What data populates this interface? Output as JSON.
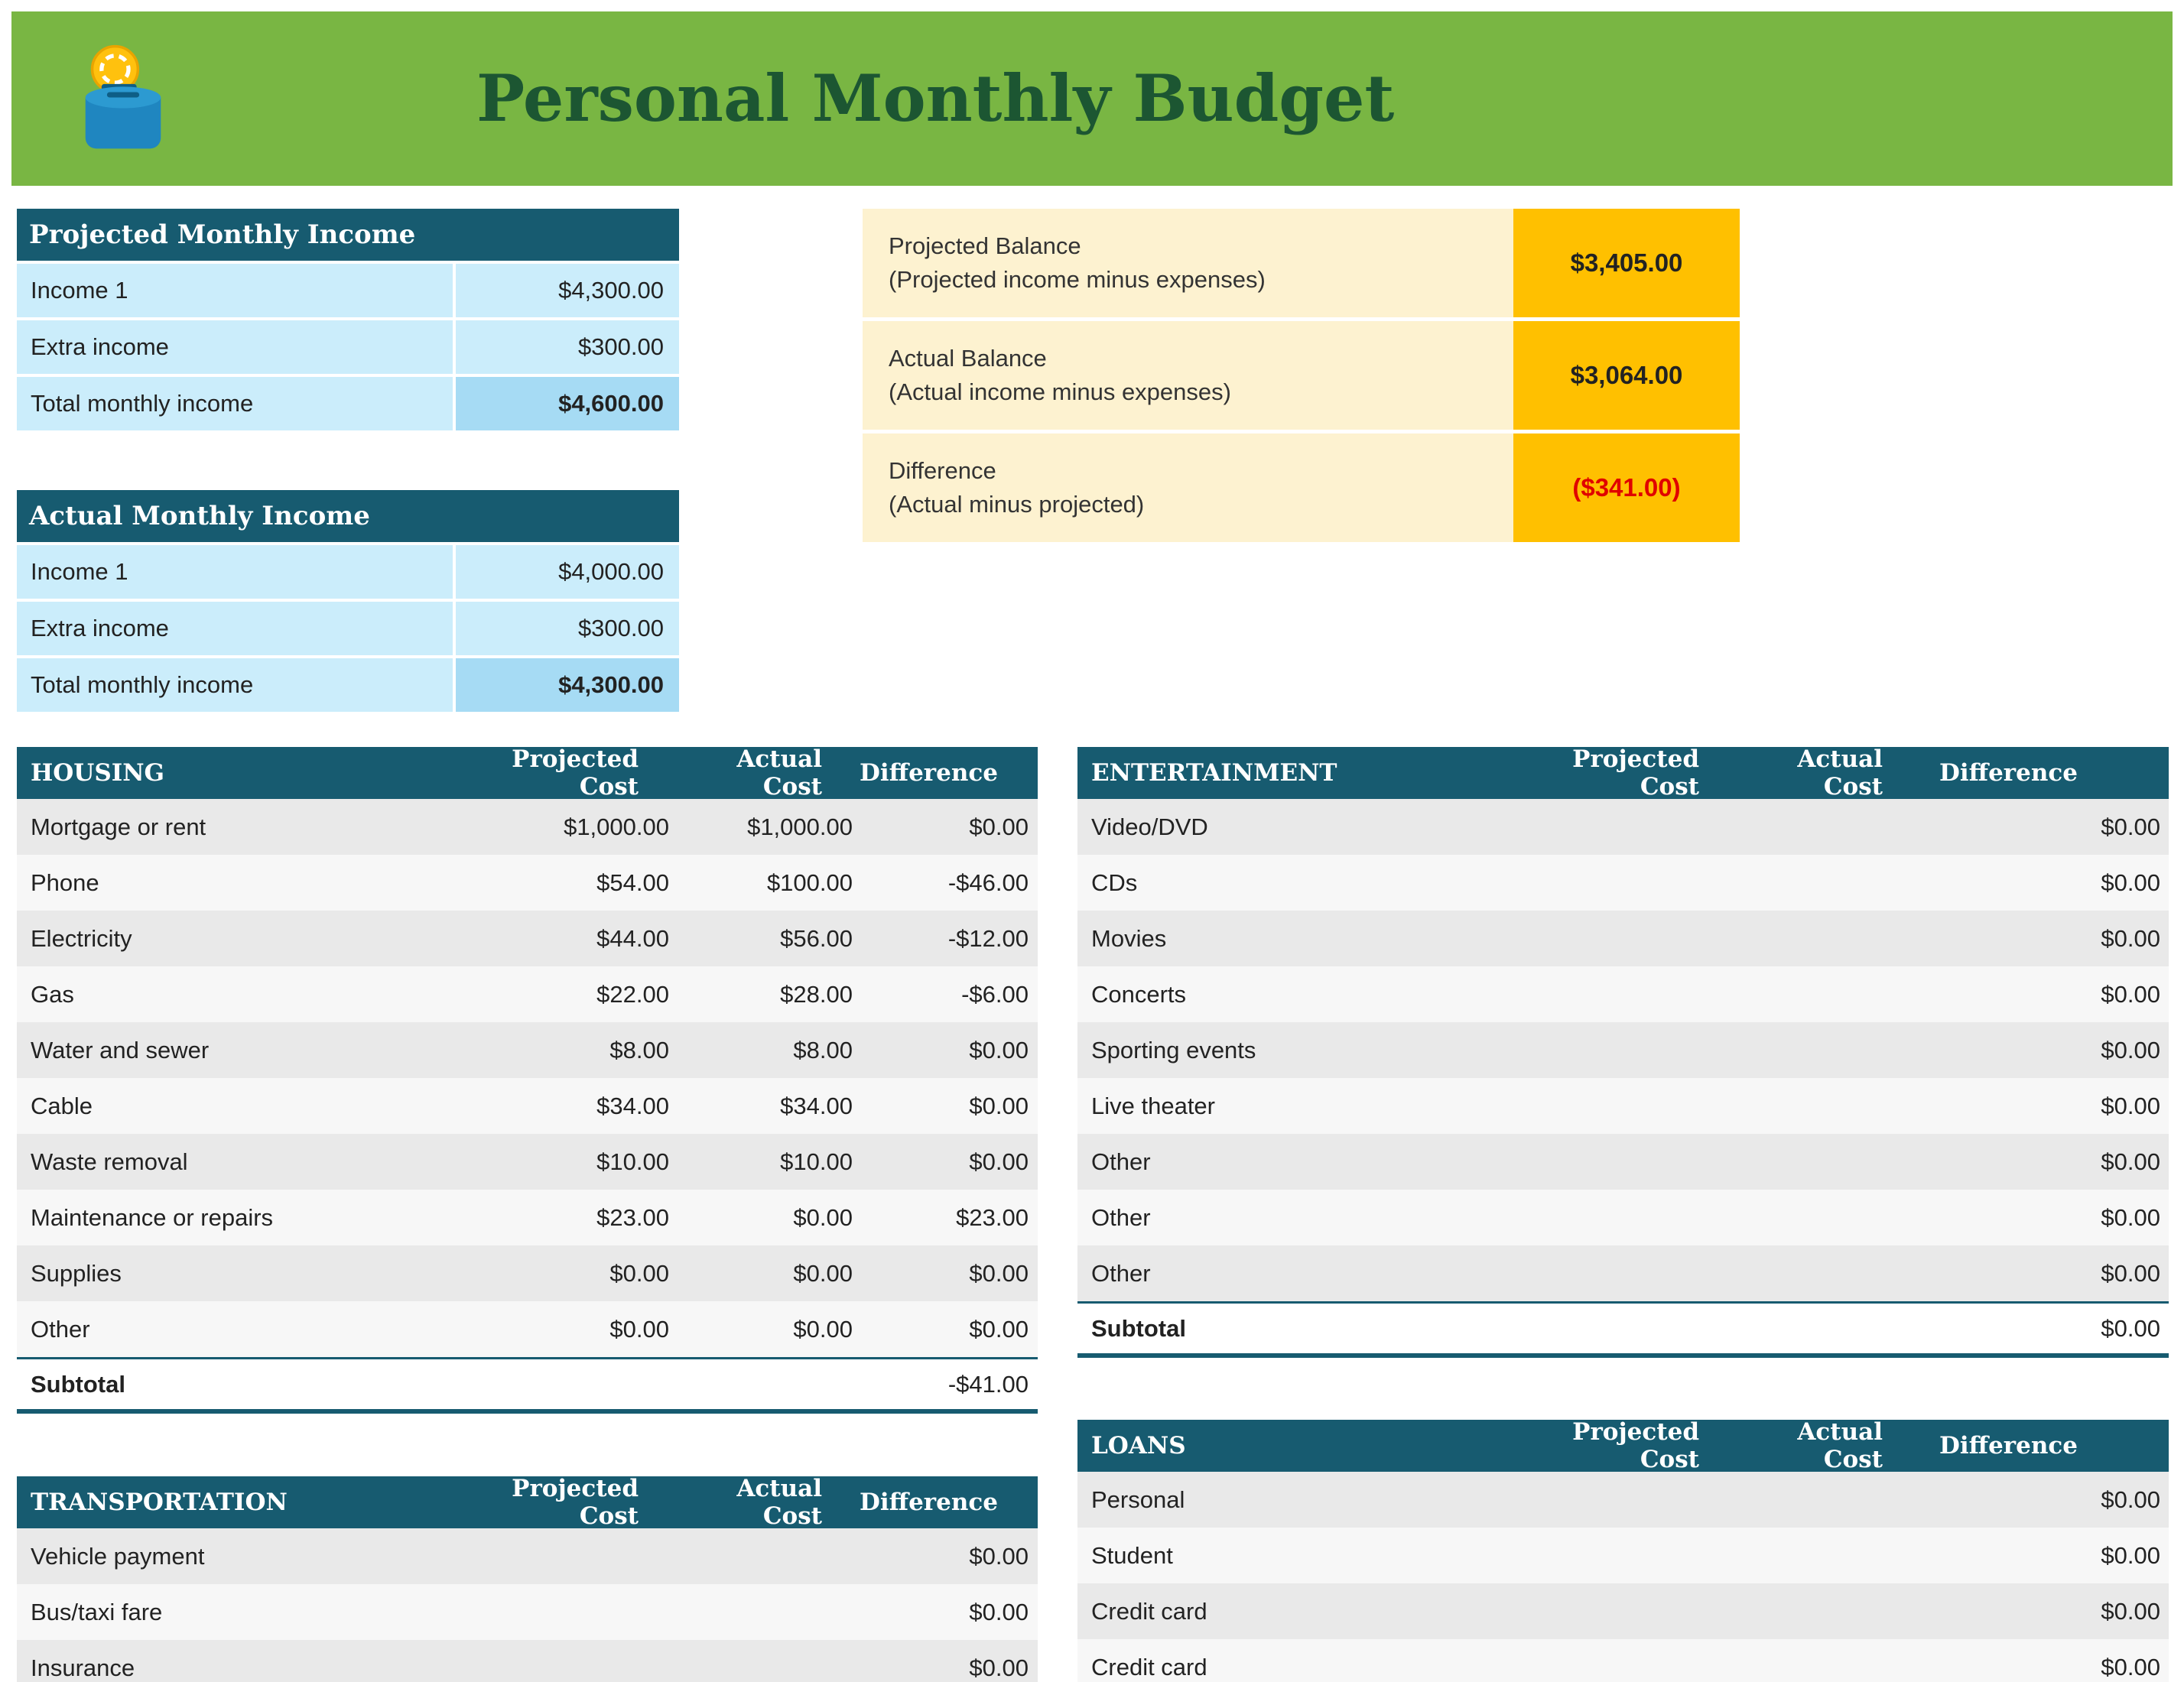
{
  "header": {
    "title": "Personal Monthly Budget"
  },
  "icon": {
    "name": "money-box-icon"
  },
  "colors": {
    "banner": "#79B643",
    "title": "#1C5632",
    "teal": "#175B70",
    "light_blue": "#CBEDFB",
    "total_blue": "#A6DBF4",
    "cream": "#FDF2D0",
    "amber": "#FFC000",
    "negative_red": "#E00000",
    "row_gray": "#E9E9E9",
    "row_light": "#F7F7F7"
  },
  "income": {
    "projected": {
      "title": "Projected Monthly Income",
      "rows": [
        {
          "label": "Income 1",
          "value": "$4,300.00"
        },
        {
          "label": "Extra income",
          "value": "$300.00"
        }
      ],
      "total": {
        "label": "Total monthly income",
        "value": "$4,600.00"
      }
    },
    "actual": {
      "title": "Actual Monthly Income",
      "rows": [
        {
          "label": "Income 1",
          "value": "$4,000.00"
        },
        {
          "label": "Extra income",
          "value": "$300.00"
        }
      ],
      "total": {
        "label": "Total monthly income",
        "value": "$4,300.00"
      }
    }
  },
  "balance": {
    "rows": [
      {
        "label": "Projected Balance",
        "sub": "(Projected income minus expenses)",
        "value": "$3,405.00",
        "negative": false
      },
      {
        "label": "Actual Balance",
        "sub": "(Actual income minus expenses)",
        "value": "$3,064.00",
        "negative": false
      },
      {
        "label": "Difference",
        "sub": "(Actual minus projected)",
        "value": "($341.00)",
        "negative": true
      }
    ]
  },
  "tables": {
    "housing": {
      "title": "HOUSING",
      "columns": [
        "Projected Cost",
        "Actual Cost",
        "Difference"
      ],
      "rows": [
        {
          "label": "Mortgage or rent",
          "projected": "$1,000.00",
          "actual": "$1,000.00",
          "difference": "$0.00"
        },
        {
          "label": "Phone",
          "projected": "$54.00",
          "actual": "$100.00",
          "difference": "-$46.00"
        },
        {
          "label": "Electricity",
          "projected": "$44.00",
          "actual": "$56.00",
          "difference": "-$12.00"
        },
        {
          "label": "Gas",
          "projected": "$22.00",
          "actual": "$28.00",
          "difference": "-$6.00"
        },
        {
          "label": "Water and sewer",
          "projected": "$8.00",
          "actual": "$8.00",
          "difference": "$0.00"
        },
        {
          "label": "Cable",
          "projected": "$34.00",
          "actual": "$34.00",
          "difference": "$0.00"
        },
        {
          "label": "Waste removal",
          "projected": "$10.00",
          "actual": "$10.00",
          "difference": "$0.00"
        },
        {
          "label": "Maintenance or repairs",
          "projected": "$23.00",
          "actual": "$0.00",
          "difference": "$23.00"
        },
        {
          "label": "Supplies",
          "projected": "$0.00",
          "actual": "$0.00",
          "difference": "$0.00"
        },
        {
          "label": "Other",
          "projected": "$0.00",
          "actual": "$0.00",
          "difference": "$0.00"
        }
      ],
      "subtotal": {
        "label": "Subtotal",
        "difference": "-$41.00"
      }
    },
    "entertainment": {
      "title": "ENTERTAINMENT",
      "columns": [
        "Projected Cost",
        "Actual Cost",
        "Difference"
      ],
      "rows": [
        {
          "label": "Video/DVD",
          "projected": "",
          "actual": "",
          "difference": "$0.00"
        },
        {
          "label": "CDs",
          "projected": "",
          "actual": "",
          "difference": "$0.00"
        },
        {
          "label": "Movies",
          "projected": "",
          "actual": "",
          "difference": "$0.00"
        },
        {
          "label": "Concerts",
          "projected": "",
          "actual": "",
          "difference": "$0.00"
        },
        {
          "label": "Sporting events",
          "projected": "",
          "actual": "",
          "difference": "$0.00"
        },
        {
          "label": "Live theater",
          "projected": "",
          "actual": "",
          "difference": "$0.00"
        },
        {
          "label": "Other",
          "projected": "",
          "actual": "",
          "difference": "$0.00"
        },
        {
          "label": "Other",
          "projected": "",
          "actual": "",
          "difference": "$0.00"
        },
        {
          "label": "Other",
          "projected": "",
          "actual": "",
          "difference": "$0.00"
        }
      ],
      "subtotal": {
        "label": "Subtotal",
        "difference": "$0.00"
      }
    },
    "transportation": {
      "title": "TRANSPORTATION",
      "columns": [
        "Projected Cost",
        "Actual Cost",
        "Difference"
      ],
      "rows": [
        {
          "label": "Vehicle payment",
          "projected": "",
          "actual": "",
          "difference": "$0.00"
        },
        {
          "label": "Bus/taxi fare",
          "projected": "",
          "actual": "",
          "difference": "$0.00"
        },
        {
          "label": "Insurance",
          "projected": "",
          "actual": "",
          "difference": "$0.00"
        }
      ]
    },
    "loans": {
      "title": "LOANS",
      "columns": [
        "Projected Cost",
        "Actual Cost",
        "Difference"
      ],
      "rows": [
        {
          "label": "Personal",
          "projected": "",
          "actual": "",
          "difference": "$0.00"
        },
        {
          "label": "Student",
          "projected": "",
          "actual": "",
          "difference": "$0.00"
        },
        {
          "label": "Credit card",
          "projected": "",
          "actual": "",
          "difference": "$0.00"
        },
        {
          "label": "Credit card",
          "projected": "",
          "actual": "",
          "difference": "$0.00"
        }
      ]
    }
  }
}
